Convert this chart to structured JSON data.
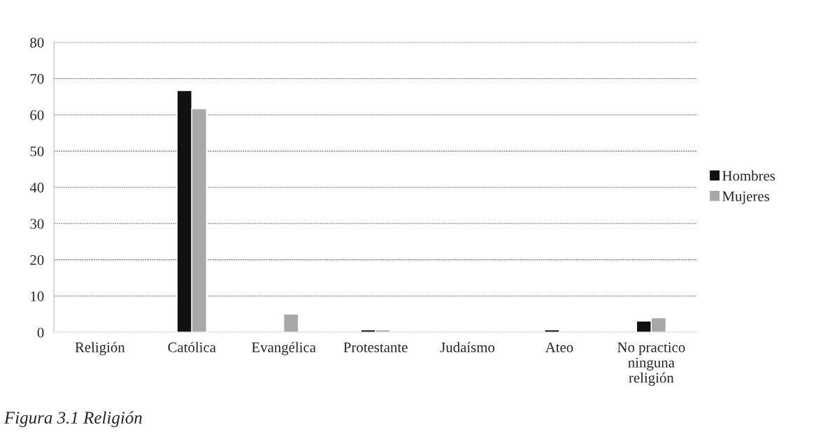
{
  "chart_data": {
    "type": "bar",
    "title": "Figura 3.1 Religión",
    "categories": [
      "Religión",
      "Católica",
      "Evangélica",
      "Protestante",
      "Judaísmo",
      "Ateo",
      "No practico\nninguna\nreligión"
    ],
    "series": [
      {
        "name": "Hombres",
        "color": "#111111",
        "values": [
          0,
          66.7,
          0,
          0.7,
          0,
          0.7,
          3.1
        ]
      },
      {
        "name": "Mujeres",
        "color": "#a8a8a8",
        "values": [
          0,
          61.7,
          5.0,
          0.7,
          0,
          0,
          4.0
        ]
      }
    ],
    "ylim": [
      0,
      80
    ],
    "yticks": [
      0,
      10,
      20,
      30,
      40,
      50,
      60,
      70,
      80
    ],
    "grid": "y",
    "legend": "right"
  }
}
